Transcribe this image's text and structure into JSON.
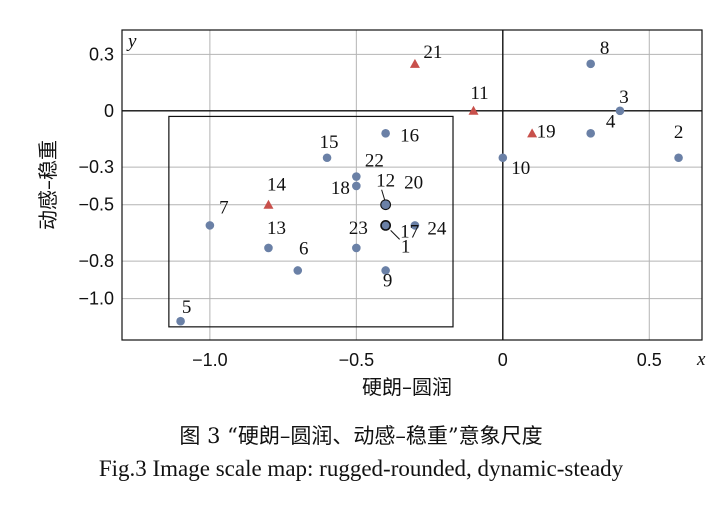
{
  "chart_data": {
    "type": "scatter",
    "xlabel": "硬朗–圆润",
    "ylabel": "动感–稳重",
    "x_axis_var": "x",
    "y_axis_var": "y",
    "xlim": [
      -1.3,
      0.68
    ],
    "ylim": [
      -1.22,
      0.43
    ],
    "xticks": [
      {
        "value": -1.0,
        "label": "−1.0"
      },
      {
        "value": -0.5,
        "label": "−0.5"
      },
      {
        "value": 0,
        "label": "0"
      },
      {
        "value": 0.5,
        "label": "0.5"
      }
    ],
    "yticks": [
      {
        "value": 0.3,
        "label": "0.3"
      },
      {
        "value": 0,
        "label": "0"
      },
      {
        "value": -0.3,
        "label": "−0.3"
      },
      {
        "value": -0.5,
        "label": "−0.5"
      },
      {
        "value": -0.8,
        "label": "−0.8"
      },
      {
        "value": -1.0,
        "label": "−1.0"
      }
    ],
    "grid": true,
    "highlight_box": {
      "x": [
        -1.14,
        -0.17
      ],
      "y": [
        -1.15,
        -0.03
      ]
    },
    "colors": {
      "circle": "#6a80a6",
      "triangle": "#c8504b",
      "grid": "#b4b4b4"
    },
    "points": [
      {
        "id": "1",
        "x": -0.4,
        "y": -0.61,
        "marker": "circle"
      },
      {
        "id": "2",
        "x": 0.6,
        "y": -0.25,
        "marker": "circle"
      },
      {
        "id": "3",
        "x": 0.4,
        "y": 0.0,
        "marker": "circle"
      },
      {
        "id": "4",
        "x": 0.3,
        "y": -0.12,
        "marker": "circle"
      },
      {
        "id": "5",
        "x": -1.1,
        "y": -1.12,
        "marker": "circle"
      },
      {
        "id": "6",
        "x": -0.7,
        "y": -0.85,
        "marker": "circle"
      },
      {
        "id": "7",
        "x": -1.0,
        "y": -0.61,
        "marker": "circle"
      },
      {
        "id": "8",
        "x": 0.3,
        "y": 0.25,
        "marker": "circle"
      },
      {
        "id": "9",
        "x": -0.4,
        "y": -0.85,
        "marker": "circle"
      },
      {
        "id": "10",
        "x": 0.0,
        "y": -0.25,
        "marker": "circle"
      },
      {
        "id": "11",
        "x": -0.1,
        "y": 0.0,
        "marker": "triangle"
      },
      {
        "id": "12",
        "x": -0.4,
        "y": -0.5,
        "marker": "circle-outlined"
      },
      {
        "id": "13",
        "x": -0.8,
        "y": -0.73,
        "marker": "circle"
      },
      {
        "id": "14",
        "x": -0.8,
        "y": -0.5,
        "marker": "triangle"
      },
      {
        "id": "15",
        "x": -0.6,
        "y": -0.25,
        "marker": "circle"
      },
      {
        "id": "16",
        "x": -0.4,
        "y": -0.12,
        "marker": "circle"
      },
      {
        "id": "17",
        "x": -0.4,
        "y": -0.61,
        "marker": "circle-outlined"
      },
      {
        "id": "18",
        "x": -0.5,
        "y": -0.4,
        "marker": "circle"
      },
      {
        "id": "19",
        "x": 0.1,
        "y": -0.12,
        "marker": "triangle"
      },
      {
        "id": "20",
        "x": -0.4,
        "y": -0.5,
        "marker": "circle"
      },
      {
        "id": "21",
        "x": -0.3,
        "y": 0.25,
        "marker": "triangle"
      },
      {
        "id": "22",
        "x": -0.5,
        "y": -0.35,
        "marker": "circle"
      },
      {
        "id": "23",
        "x": -0.5,
        "y": -0.73,
        "marker": "circle"
      },
      {
        "id": "24",
        "x": -0.3,
        "y": -0.61,
        "marker": "circle"
      }
    ]
  },
  "caption": {
    "cn": "图 3 “硬朗–圆润、动感–稳重”意象尺度",
    "en": "Fig.3 Image scale map: rugged-rounded, dynamic-steady"
  }
}
